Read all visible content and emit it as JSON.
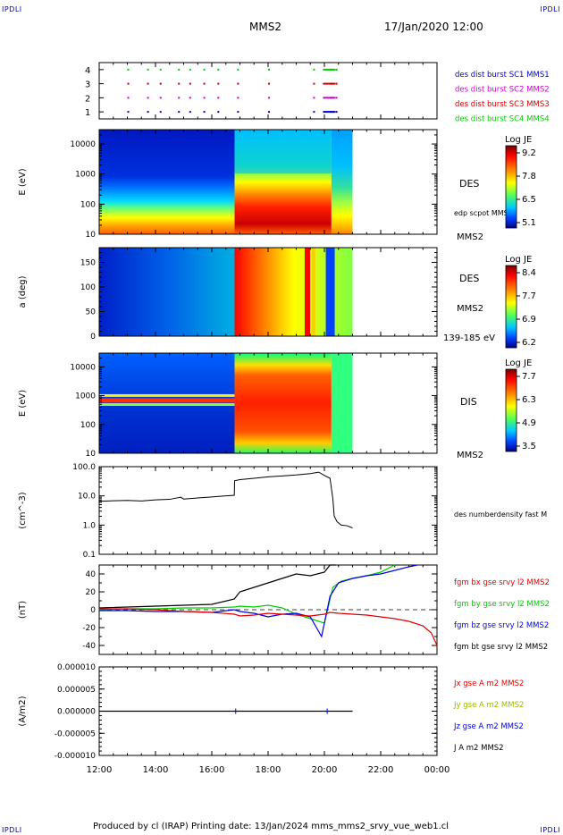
{
  "header": {
    "corner_tl": "IPDLI",
    "corner_tr": "IPDLI",
    "corner_bl": "IPDLI",
    "corner_br": "IPDLI",
    "spacecraft": "MMS2",
    "datetime": "17/Jan/2020 12:00"
  },
  "footer": {
    "text": "Produced by cl (IRAP)   Printing date: 13/Jan/2024   mms_mms2_srvy_vue_web1.cl"
  },
  "colors": {
    "mms1": "#0000cc",
    "mms2": "#cc00cc",
    "mms3": "#cc0000",
    "mms4": "#00cc00",
    "bx": "#dd0000",
    "by": "#00cc00",
    "bz": "#0000dd",
    "bt": "#000000"
  },
  "chart_data": [
    {
      "type": "scatter",
      "panel": "burst-availability",
      "y_ticks": [
        "1",
        "2",
        "3",
        "4"
      ],
      "ylim": [
        0.5,
        4.5
      ],
      "series": [
        {
          "name": "des dist burst SC1 MMS1",
          "y": 1,
          "color": "#0000cc",
          "x": [
            13.0,
            13.7,
            14.15,
            14.8,
            15.2,
            15.7,
            16.2,
            16.9,
            18.0,
            19.6,
            19.95,
            20.2,
            20.4
          ]
        },
        {
          "name": "des dist burst SC2 MMS2",
          "y": 2,
          "color": "#cc00cc",
          "x": [
            13.0,
            13.7,
            14.15,
            14.8,
            15.2,
            15.7,
            16.2,
            16.9,
            18.0,
            19.6,
            19.95,
            20.2,
            20.4
          ]
        },
        {
          "name": "des dist burst SC3 MMS3",
          "y": 3,
          "color": "#cc0000",
          "x": [
            13.0,
            13.7,
            14.15,
            14.8,
            15.2,
            15.7,
            16.2,
            16.9,
            18.0,
            19.6,
            19.95,
            20.2,
            20.4
          ]
        },
        {
          "name": "des dist burst SC4 MMS4",
          "y": 4,
          "color": "#00cc00",
          "x": [
            13.0,
            13.7,
            14.15,
            14.8,
            15.2,
            15.7,
            16.2,
            16.9,
            18.0,
            19.6,
            19.95,
            20.2,
            20.4
          ]
        }
      ],
      "legend": [
        "des dist burst SC1 MMS1",
        "des dist burst SC2 MMS2",
        "des dist burst SC3 MMS3",
        "des dist burst SC4 MMS4"
      ]
    },
    {
      "type": "heatmap",
      "panel": "des-energy",
      "ylabel": "E (eV)",
      "y_ticks": [
        "10",
        "100",
        "1000",
        "10000"
      ],
      "ylim": [
        10,
        30000
      ],
      "yscale": "log",
      "instrument": "DES",
      "spacecraft": "MMS2",
      "overlay_label": "edp scpot MMS2",
      "colorbar": {
        "title": "Log JE",
        "ticks": [
          "9.2",
          "7.8",
          "6.5",
          "5.1"
        ],
        "range": [
          5.1,
          9.2
        ]
      }
    },
    {
      "type": "heatmap",
      "panel": "des-pitch-angle",
      "ylabel": "a (deg)",
      "y_ticks": [
        "0",
        "50",
        "100",
        "150"
      ],
      "ylim": [
        0,
        180
      ],
      "instrument": "DES",
      "spacecraft": "MMS2",
      "energy_band": "139-185 eV",
      "colorbar": {
        "title": "Log JE",
        "ticks": [
          "8.4",
          "7.7",
          "6.9",
          "6.2"
        ],
        "range": [
          6.2,
          8.4
        ]
      }
    },
    {
      "type": "heatmap",
      "panel": "dis-energy",
      "ylabel": "E (eV)",
      "y_ticks": [
        "10",
        "100",
        "1000",
        "10000"
      ],
      "ylim": [
        10,
        30000
      ],
      "yscale": "log",
      "instrument": "DIS",
      "spacecraft": "MMS2",
      "colorbar": {
        "title": "Log JE",
        "ticks": [
          "7.7",
          "6.3",
          "4.9",
          "3.5"
        ],
        "range": [
          3.5,
          7.7
        ]
      }
    },
    {
      "type": "line",
      "panel": "density",
      "ylabel": "(cm^-3)",
      "y_ticks": [
        "0.1",
        "1.0",
        "10.0",
        "100.0"
      ],
      "ylim": [
        0.1,
        100
      ],
      "yscale": "log",
      "series": [
        {
          "name": "des numberdensity fast M",
          "color": "#000000",
          "x": [
            12.0,
            12.5,
            13.0,
            13.5,
            14.0,
            14.5,
            14.9,
            15.0,
            15.3,
            15.6,
            16.0,
            16.5,
            16.8,
            16.81,
            17.0,
            17.5,
            18.0,
            18.5,
            19.0,
            19.5,
            19.8,
            20.0,
            20.2,
            20.3,
            20.35,
            20.45,
            20.6,
            20.8,
            21.0
          ],
          "y": [
            6.5,
            6.8,
            7.0,
            6.7,
            7.3,
            7.6,
            9.0,
            7.8,
            8.2,
            8.6,
            9.2,
            10.0,
            10.5,
            33,
            36,
            40,
            45,
            48,
            52,
            58,
            65,
            50,
            40,
            8,
            2.0,
            1.3,
            1.0,
            0.95,
            0.8
          ]
        }
      ]
    },
    {
      "type": "line",
      "panel": "magnetic-field",
      "ylabel": "(nT)",
      "y_ticks": [
        "-40",
        "-20",
        "0",
        "20",
        "40"
      ],
      "ylim": [
        -50,
        50
      ],
      "series": [
        {
          "name": "fgm bx gse srvy l2 MMS2",
          "color": "#dd0000",
          "x": [
            12.0,
            13.0,
            14.0,
            15.0,
            16.0,
            16.8,
            17.0,
            17.5,
            18.0,
            18.5,
            19.0,
            19.5,
            20.0,
            20.2,
            20.5,
            21.0,
            21.5,
            22.0,
            22.5,
            23.0,
            23.5,
            23.8,
            24.0
          ],
          "y": [
            1,
            1,
            0,
            -2,
            -3,
            -5,
            -7,
            -6,
            -4,
            -5,
            -6,
            -7,
            -5,
            -3,
            -4,
            -5,
            -6,
            -8,
            -10,
            -13,
            -18,
            -26,
            -40
          ]
        },
        {
          "name": "fgm by gse srvy l2 MMS2",
          "color": "#00cc00",
          "x": [
            12.0,
            13.0,
            14.0,
            15.0,
            16.0,
            16.8,
            17.0,
            17.5,
            18.0,
            18.5,
            19.0,
            19.5,
            20.0,
            20.3,
            20.6,
            21.0,
            21.5,
            22.0,
            22.5
          ],
          "y": [
            0,
            1,
            1,
            2,
            2,
            3,
            4,
            3,
            5,
            2,
            -5,
            -10,
            -15,
            25,
            32,
            35,
            38,
            42,
            50
          ]
        },
        {
          "name": "fgm bz gse srvy l2 MMS2",
          "color": "#0000dd",
          "x": [
            12.0,
            13.0,
            14.0,
            15.0,
            16.0,
            16.8,
            17.0,
            17.5,
            18.0,
            18.5,
            19.0,
            19.5,
            19.9,
            20.2,
            20.5,
            21.0,
            21.5,
            22.0,
            22.5,
            23.0,
            23.3
          ],
          "y": [
            -1,
            -1,
            -2,
            -2,
            -3,
            0,
            -2,
            -4,
            -8,
            -5,
            -4,
            -8,
            -30,
            15,
            30,
            35,
            38,
            40,
            44,
            48,
            51
          ]
        },
        {
          "name": "fgm bt gse srvy l2 MMS2",
          "color": "#000000",
          "x": [
            12.0,
            13.0,
            14.0,
            15.0,
            16.0,
            16.8,
            17.0,
            17.5,
            18.0,
            18.5,
            19.0,
            19.5,
            20.0,
            20.2,
            20.4
          ],
          "y": [
            2,
            3,
            4,
            5,
            6,
            12,
            20,
            25,
            30,
            35,
            40,
            38,
            42,
            50,
            55
          ]
        }
      ]
    },
    {
      "type": "line",
      "panel": "current-density",
      "ylabel": "(A/m2)",
      "y_ticks": [
        "-0.000010",
        "-0.000005",
        "0.000000",
        "0.000005",
        "0.000010"
      ],
      "ylim": [
        -1e-05,
        1e-05
      ],
      "series": [
        {
          "name": "Jx gse A m2 MMS2",
          "color": "#dd0000"
        },
        {
          "name": "Jy gse A m2 MMS2",
          "color": "#99bb00"
        },
        {
          "name": "Jz gse A m2 MMS2",
          "color": "#0000dd"
        },
        {
          "name": "J A m2 MMS2",
          "color": "#000000"
        }
      ]
    }
  ],
  "x_axis": {
    "ticks": [
      "12:00",
      "14:00",
      "16:00",
      "18:00",
      "20:00",
      "22:00",
      "00:00"
    ],
    "range": [
      12,
      24
    ]
  }
}
